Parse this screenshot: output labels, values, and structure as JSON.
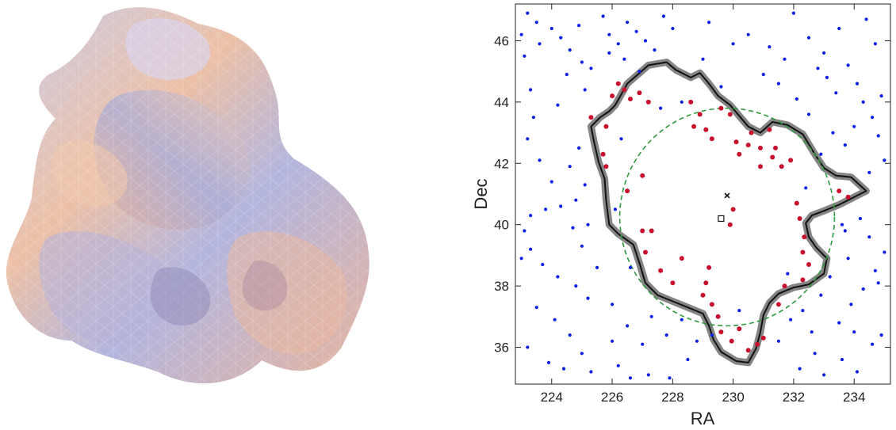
{
  "chart_data": [
    {
      "type": "3d-render",
      "description_visible": "",
      "colors": {
        "warm": "#e9b79a",
        "cool": "#aab2dc",
        "shadow": "#8a7aa8",
        "highlight": "#f3e6ea"
      }
    },
    {
      "type": "scatter",
      "xlabel": "RA",
      "ylabel": "Dec",
      "xlim": [
        222.8,
        235.2
      ],
      "ylim": [
        34.8,
        47.2
      ],
      "xticks": [
        224,
        226,
        228,
        230,
        232,
        234
      ],
      "yticks": [
        36,
        38,
        40,
        42,
        44,
        46
      ],
      "grid": false,
      "circle": {
        "center": [
          229.8,
          40.25
        ],
        "radius_ra": 3.55,
        "radius_dec": 3.55,
        "color": "#2e9a3e",
        "style": "dashed"
      },
      "markers": [
        {
          "symbol": "x",
          "ra": 229.8,
          "dec": 40.95
        },
        {
          "symbol": "square",
          "ra": 229.6,
          "dec": 40.2
        }
      ],
      "contour": {
        "color": "#111111",
        "band_color": "#666666",
        "points": [
          [
            226.1,
            43.9
          ],
          [
            226.5,
            44.6
          ],
          [
            227.2,
            45.2
          ],
          [
            227.8,
            45.3
          ],
          [
            228.1,
            45.05
          ],
          [
            228.6,
            44.8
          ],
          [
            228.9,
            44.95
          ],
          [
            229.2,
            44.6
          ],
          [
            229.5,
            44.2
          ],
          [
            229.9,
            43.9
          ],
          [
            230.2,
            43.55
          ],
          [
            230.5,
            43.2
          ],
          [
            230.9,
            43.0
          ],
          [
            231.3,
            43.35
          ],
          [
            231.8,
            43.25
          ],
          [
            232.3,
            42.95
          ],
          [
            232.7,
            42.3
          ],
          [
            233.0,
            41.85
          ],
          [
            233.4,
            41.6
          ],
          [
            233.9,
            41.55
          ],
          [
            234.4,
            41.1
          ],
          [
            234.0,
            40.9
          ],
          [
            233.5,
            40.65
          ],
          [
            233.0,
            40.45
          ],
          [
            232.6,
            40.3
          ],
          [
            232.4,
            40.05
          ],
          [
            232.5,
            39.6
          ],
          [
            232.75,
            39.25
          ],
          [
            233.1,
            38.9
          ],
          [
            233.0,
            38.4
          ],
          [
            232.5,
            38.05
          ],
          [
            232.0,
            37.95
          ],
          [
            231.5,
            37.75
          ],
          [
            231.2,
            37.45
          ],
          [
            231.0,
            37.05
          ],
          [
            230.9,
            36.5
          ],
          [
            230.75,
            35.95
          ],
          [
            230.5,
            35.5
          ],
          [
            230.1,
            35.55
          ],
          [
            229.6,
            35.85
          ],
          [
            229.35,
            36.25
          ],
          [
            229.2,
            36.7
          ],
          [
            229.0,
            37.1
          ],
          [
            228.5,
            37.3
          ],
          [
            228.0,
            37.5
          ],
          [
            227.5,
            37.7
          ],
          [
            227.1,
            38.1
          ],
          [
            226.9,
            38.75
          ],
          [
            226.7,
            39.35
          ],
          [
            226.2,
            39.7
          ],
          [
            225.9,
            40.0
          ],
          [
            225.8,
            40.8
          ],
          [
            225.75,
            41.5
          ],
          [
            225.55,
            42.05
          ],
          [
            225.4,
            42.7
          ],
          [
            225.3,
            43.2
          ],
          [
            225.6,
            43.5
          ],
          [
            225.9,
            43.7
          ]
        ]
      },
      "series": [
        {
          "color": "#c8102e",
          "points": [
            [
              225.3,
              43.5
            ],
            [
              226.0,
              44.2
            ],
            [
              226.2,
              44.6
            ],
            [
              226.4,
              44.4
            ],
            [
              226.6,
              44.1
            ],
            [
              226.9,
              44.3
            ],
            [
              227.2,
              44.0
            ],
            [
              225.8,
              43.2
            ],
            [
              225.7,
              42.3
            ],
            [
              225.8,
              41.9
            ],
            [
              227.0,
              41.6
            ],
            [
              226.5,
              41.1
            ],
            [
              227.0,
              39.8
            ],
            [
              227.3,
              39.8
            ],
            [
              227.1,
              39.1
            ],
            [
              227.6,
              38.5
            ],
            [
              228.0,
              38.1
            ],
            [
              228.3,
              38.9
            ],
            [
              228.6,
              44.0
            ],
            [
              228.9,
              43.6
            ],
            [
              229.1,
              43.1
            ],
            [
              229.3,
              42.8
            ],
            [
              228.7,
              43.2
            ],
            [
              229.6,
              43.8
            ],
            [
              229.9,
              43.6
            ],
            [
              230.1,
              42.7
            ],
            [
              230.2,
              42.3
            ],
            [
              230.5,
              42.6
            ],
            [
              230.6,
              43.0
            ],
            [
              230.9,
              42.5
            ],
            [
              231.3,
              42.2
            ],
            [
              231.6,
              41.9
            ],
            [
              231.4,
              42.5
            ],
            [
              231.2,
              43.1
            ],
            [
              230.9,
              41.9
            ],
            [
              231.9,
              42.1
            ],
            [
              232.1,
              40.7
            ],
            [
              232.2,
              40.2
            ],
            [
              232.35,
              39.6
            ],
            [
              232.3,
              39.1
            ],
            [
              232.5,
              38.7
            ],
            [
              232.3,
              38.2
            ],
            [
              231.7,
              38.0
            ],
            [
              231.5,
              37.4
            ],
            [
              231.0,
              36.3
            ],
            [
              230.8,
              36.1
            ],
            [
              230.5,
              35.9
            ],
            [
              230.2,
              36.6
            ],
            [
              229.95,
              36.2
            ],
            [
              229.6,
              36.5
            ],
            [
              229.5,
              37.0
            ],
            [
              229.3,
              37.4
            ],
            [
              229.1,
              38.1
            ],
            [
              229.0,
              37.7
            ],
            [
              229.2,
              38.6
            ],
            [
              229.9,
              40.0
            ],
            [
              230.0,
              40.5
            ],
            [
              233.5,
              41.1
            ],
            [
              233.8,
              40.9
            ]
          ]
        },
        {
          "color": "#0a1ee6",
          "points": [
            [
              223.2,
              46.9
            ],
            [
              223.5,
              46.6
            ],
            [
              223.0,
              46.2
            ],
            [
              223.6,
              45.9
            ],
            [
              224.0,
              46.4
            ],
            [
              224.3,
              46.1
            ],
            [
              224.6,
              45.7
            ],
            [
              224.9,
              46.5
            ],
            [
              225.0,
              45.3
            ],
            [
              225.3,
              45.1
            ],
            [
              225.7,
              46.8
            ],
            [
              225.9,
              46.2
            ],
            [
              226.2,
              45.9
            ],
            [
              226.5,
              46.6
            ],
            [
              226.8,
              46.3
            ],
            [
              227.1,
              46.0
            ],
            [
              227.4,
              45.7
            ],
            [
              227.7,
              46.8
            ],
            [
              228.0,
              46.4
            ],
            [
              229.2,
              46.6
            ],
            [
              230.5,
              46.2
            ],
            [
              231.2,
              45.8
            ],
            [
              231.7,
              45.4
            ],
            [
              232.0,
              46.9
            ],
            [
              232.5,
              46.1
            ],
            [
              233.0,
              45.6
            ],
            [
              233.5,
              46.4
            ],
            [
              233.8,
              45.2
            ],
            [
              234.1,
              44.6
            ],
            [
              234.4,
              46.7
            ],
            [
              234.7,
              45.9
            ],
            [
              234.9,
              44.2
            ],
            [
              234.3,
              44.0
            ],
            [
              234.6,
              43.5
            ],
            [
              234.8,
              42.9
            ],
            [
              233.1,
              44.8
            ],
            [
              233.4,
              44.3
            ],
            [
              232.8,
              45.1
            ],
            [
              234.0,
              43.2
            ],
            [
              233.7,
              42.6
            ],
            [
              235.0,
              42.1
            ],
            [
              234.5,
              41.7
            ],
            [
              223.1,
              45.5
            ],
            [
              223.4,
              43.5
            ],
            [
              223.2,
              42.8
            ],
            [
              223.6,
              42.1
            ],
            [
              224.0,
              41.4
            ],
            [
              223.3,
              40.3
            ],
            [
              223.8,
              40.5
            ],
            [
              223.1,
              39.8
            ],
            [
              224.3,
              40.6
            ],
            [
              224.7,
              39.9
            ],
            [
              223.3,
              39.2
            ],
            [
              223.0,
              38.9
            ],
            [
              223.7,
              38.7
            ],
            [
              224.2,
              38.3
            ],
            [
              224.8,
              38.0
            ],
            [
              225.2,
              37.6
            ],
            [
              223.5,
              37.3
            ],
            [
              224.1,
              36.9
            ],
            [
              224.6,
              36.4
            ],
            [
              223.2,
              36.0
            ],
            [
              223.9,
              35.5
            ],
            [
              224.4,
              35.3
            ],
            [
              225.0,
              35.8
            ],
            [
              225.3,
              35.2
            ],
            [
              226.2,
              35.4
            ],
            [
              226.6,
              35.0
            ],
            [
              227.2,
              35.1
            ],
            [
              227.9,
              35.0
            ],
            [
              228.5,
              35.6
            ],
            [
              226.0,
              36.2
            ],
            [
              226.5,
              36.7
            ],
            [
              227.0,
              36.1
            ],
            [
              227.8,
              36.4
            ],
            [
              228.3,
              36.9
            ],
            [
              232.2,
              35.3
            ],
            [
              232.7,
              35.8
            ],
            [
              233.0,
              35.1
            ],
            [
              233.6,
              35.6
            ],
            [
              234.1,
              35.2
            ],
            [
              234.6,
              36.1
            ],
            [
              234.9,
              36.4
            ],
            [
              233.5,
              36.8
            ],
            [
              233.9,
              37.4
            ],
            [
              234.3,
              37.9
            ],
            [
              234.7,
              38.5
            ],
            [
              235.0,
              39.1
            ],
            [
              234.5,
              39.6
            ],
            [
              234.2,
              40.2
            ],
            [
              233.7,
              39.8
            ],
            [
              234.8,
              38.1
            ],
            [
              232.3,
              37.2
            ],
            [
              232.6,
              36.5
            ],
            [
              224.5,
              44.9
            ],
            [
              225.1,
              44.4
            ],
            [
              224.2,
              43.9
            ],
            [
              223.3,
              44.4
            ],
            [
              225.9,
              45.6
            ],
            [
              226.4,
              45.4
            ],
            [
              226.9,
              45.0
            ],
            [
              229.0,
              45.4
            ],
            [
              230.0,
              45.9
            ],
            [
              231.5,
              44.6
            ],
            [
              232.1,
              44.1
            ],
            [
              232.5,
              43.6
            ],
            [
              233.3,
              43.0
            ],
            [
              224.9,
              42.5
            ],
            [
              224.6,
              41.9
            ],
            [
              225.1,
              41.3
            ],
            [
              224.8,
              40.8
            ],
            [
              225.2,
              40.0
            ],
            [
              225.0,
              39.3
            ],
            [
              225.5,
              38.6
            ],
            [
              232.9,
              37.7
            ],
            [
              233.8,
              38.9
            ],
            [
              234.0,
              36.5
            ],
            [
              226.0,
              37.4
            ],
            [
              227.3,
              37.0
            ],
            [
              228.8,
              36.2
            ],
            [
              231.5,
              36.2
            ],
            [
              231.9,
              36.9
            ],
            [
              233.2,
              38.3
            ],
            [
              228.3,
              44.0
            ],
            [
              229.6,
              44.5
            ],
            [
              231.0,
              44.9
            ],
            [
              232.9,
              42.3
            ],
            [
              233.6,
              40.0
            ],
            [
              231.8,
              38.4
            ],
            [
              230.2,
              37.2
            ],
            [
              229.3,
              36.4
            ],
            [
              226.6,
              38.6
            ],
            [
              226.1,
              40.5
            ],
            [
              226.3,
              42.8
            ],
            [
              227.6,
              43.8
            ],
            [
              232.4,
              41.2
            ]
          ]
        }
      ]
    }
  ]
}
